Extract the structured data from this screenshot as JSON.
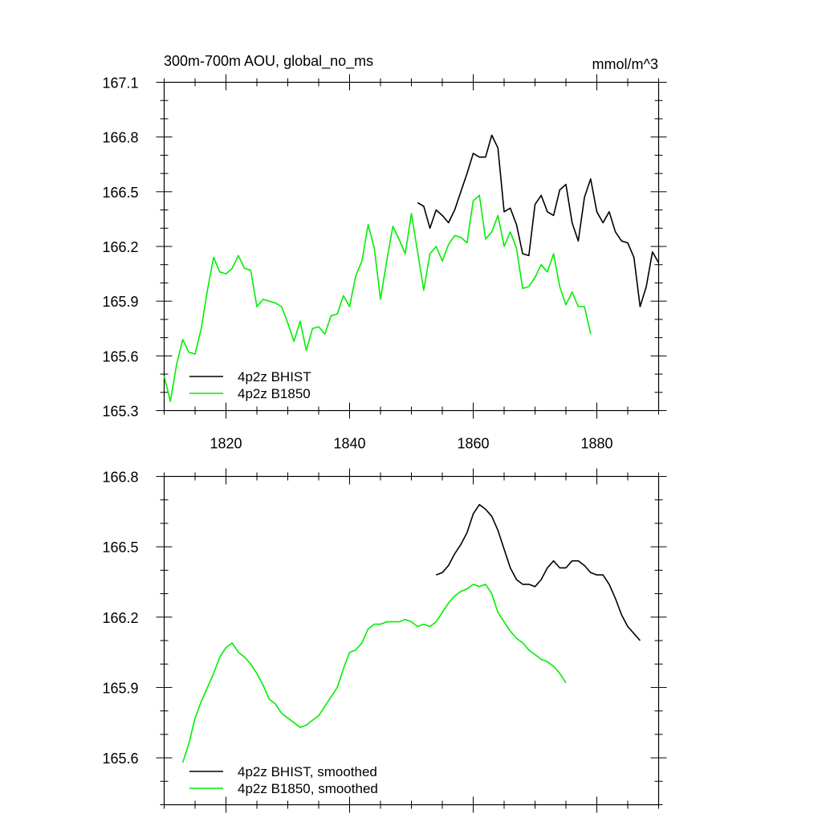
{
  "colors": {
    "hist": "#000000",
    "b1850": "#00ee00"
  },
  "chart_data": [
    {
      "type": "line",
      "title": "300m-700m AOU, global_no_ms",
      "units": "mmol/m^3",
      "xlim": [
        1810,
        1890
      ],
      "ylim": [
        165.3,
        167.1
      ],
      "xticks": [
        1820,
        1840,
        1860,
        1880
      ],
      "yticks": [
        165.3,
        165.6,
        165.9,
        166.2,
        166.5,
        166.8,
        167.1
      ],
      "ytick_labels": [
        "165.3",
        "165.6",
        "165.9",
        "166.2",
        "166.5",
        "166.8",
        "167.1"
      ],
      "legend_position": "bottom-left",
      "series": [
        {
          "name": "4p2z BHIST",
          "color": "#000000",
          "x_start": 1851,
          "values": [
            166.44,
            166.42,
            166.3,
            166.4,
            166.37,
            166.33,
            166.4,
            166.5,
            166.6,
            166.71,
            166.69,
            166.69,
            166.81,
            166.74,
            166.39,
            166.41,
            166.32,
            166.16,
            166.15,
            166.43,
            166.48,
            166.39,
            166.37,
            166.51,
            166.54,
            166.33,
            166.23,
            166.47,
            166.57,
            166.39,
            166.33,
            166.39,
            166.28,
            166.23,
            166.22,
            166.14,
            165.87,
            165.98,
            166.17,
            166.11
          ]
        },
        {
          "name": "4p2z B1850",
          "color": "#00ee00",
          "x_start": 1810,
          "values": [
            165.49,
            165.35,
            165.55,
            165.69,
            165.62,
            165.61,
            165.75,
            165.96,
            166.14,
            166.06,
            166.05,
            166.08,
            166.15,
            166.08,
            166.07,
            165.87,
            165.91,
            165.9,
            165.89,
            165.87,
            165.78,
            165.68,
            165.79,
            165.63,
            165.75,
            165.76,
            165.72,
            165.82,
            165.83,
            165.93,
            165.87,
            166.04,
            166.12,
            166.32,
            166.19,
            165.91,
            166.12,
            166.31,
            166.24,
            166.16,
            166.38,
            166.17,
            165.96,
            166.16,
            166.2,
            166.12,
            166.21,
            166.26,
            166.25,
            166.22,
            166.45,
            166.48,
            166.24,
            166.28,
            166.37,
            166.2,
            166.28,
            166.19,
            165.97,
            165.98,
            166.03,
            166.1,
            166.06,
            166.16,
            165.98,
            165.88,
            165.95,
            165.87,
            165.87,
            165.72
          ]
        }
      ]
    },
    {
      "type": "line",
      "xlim": [
        1810,
        1890
      ],
      "ylim": [
        165.4,
        166.8
      ],
      "xticks": [
        1820,
        1840,
        1860,
        1880
      ],
      "yticks": [
        165.6,
        165.9,
        166.2,
        166.5,
        166.8
      ],
      "ytick_labels": [
        "165.6",
        "165.9",
        "166.2",
        "166.5",
        "166.8"
      ],
      "legend_position": "bottom-left",
      "series": [
        {
          "name": "4p2z BHIST, smoothed",
          "color": "#000000",
          "x_start": 1854,
          "values": [
            166.38,
            166.39,
            166.42,
            166.47,
            166.51,
            166.56,
            166.64,
            166.68,
            166.66,
            166.63,
            166.57,
            166.49,
            166.41,
            166.36,
            166.34,
            166.34,
            166.33,
            166.36,
            166.41,
            166.44,
            166.41,
            166.41,
            166.44,
            166.44,
            166.42,
            166.39,
            166.38,
            166.38,
            166.34,
            166.28,
            166.21,
            166.16,
            166.13,
            166.1
          ]
        },
        {
          "name": "4p2z B1850, smoothed",
          "color": "#00ee00",
          "x_start": 1813,
          "values": [
            165.58,
            165.66,
            165.77,
            165.84,
            165.9,
            165.96,
            166.03,
            166.07,
            166.09,
            166.05,
            166.03,
            166.0,
            165.96,
            165.91,
            165.85,
            165.83,
            165.79,
            165.77,
            165.75,
            165.73,
            165.74,
            165.76,
            165.78,
            165.82,
            165.86,
            165.9,
            165.98,
            166.05,
            166.06,
            166.09,
            166.15,
            166.17,
            166.17,
            166.18,
            166.18,
            166.18,
            166.19,
            166.18,
            166.16,
            166.17,
            166.16,
            166.18,
            166.22,
            166.26,
            166.29,
            166.31,
            166.32,
            166.34,
            166.33,
            166.34,
            166.3,
            166.22,
            166.18,
            166.14,
            166.11,
            166.09,
            166.06,
            166.04,
            166.02,
            166.01,
            165.99,
            165.96,
            165.92
          ]
        }
      ]
    }
  ]
}
